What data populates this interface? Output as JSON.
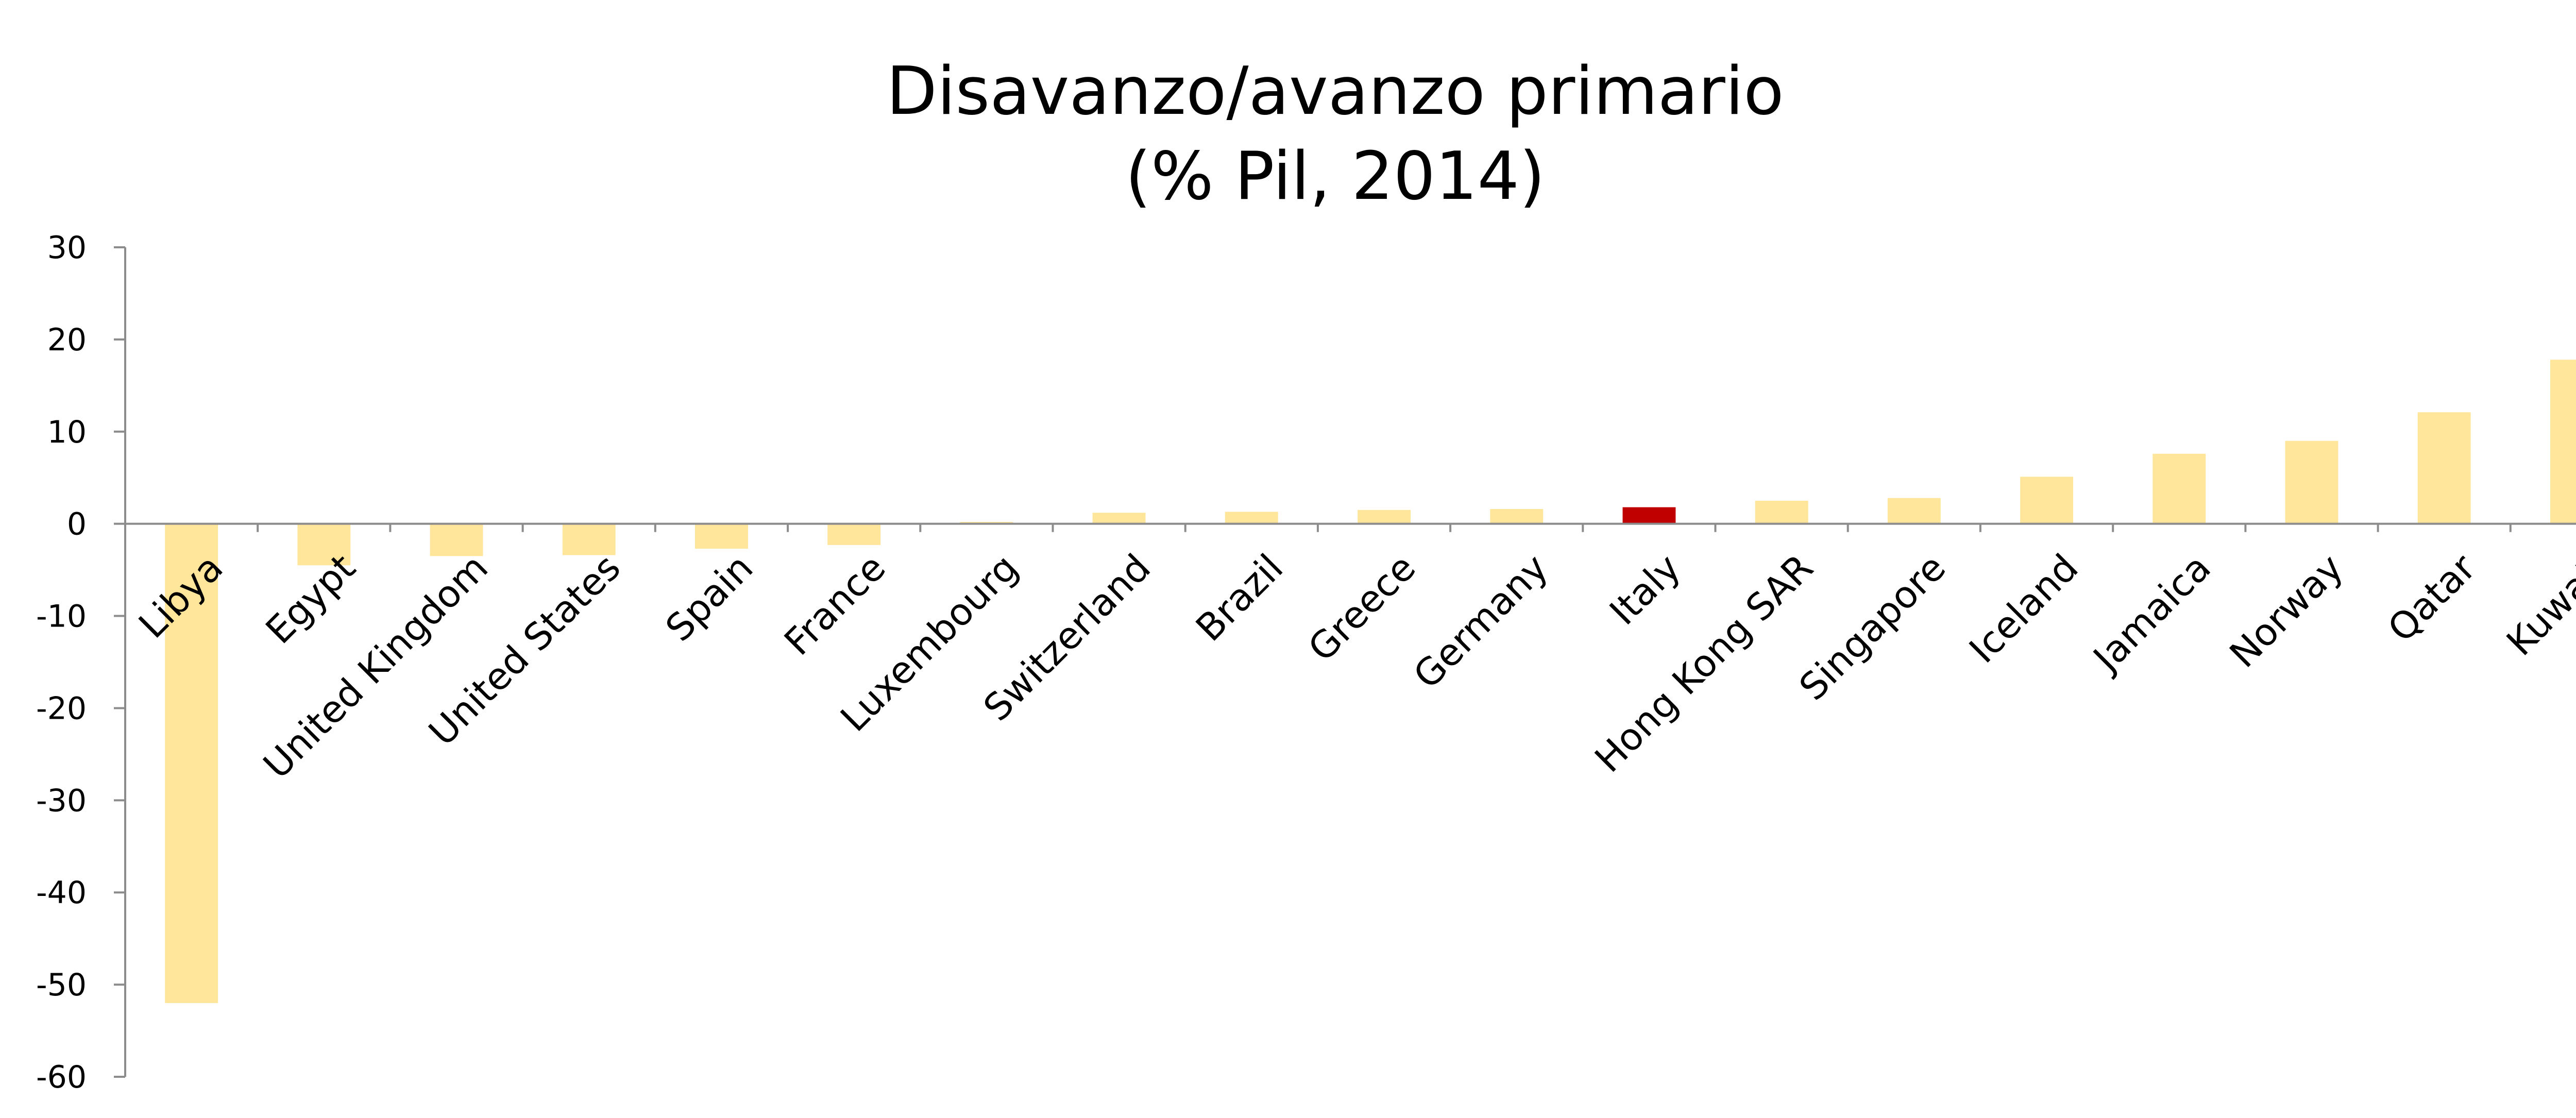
{
  "chart_data": {
    "type": "bar",
    "title": [
      "Disavanzo/avanzo primario",
      "(% Pil, 2014)"
    ],
    "xlabel": "",
    "ylabel": "",
    "categories": [
      "Libya",
      "Egypt",
      "United Kingdom",
      "United States",
      "Spain",
      "France",
      "Luxembourg",
      "Switzerland",
      "Brazil",
      "Greece",
      "Germany",
      "Italy",
      "Hong Kong SAR",
      "Singapore",
      "Iceland",
      "Jamaica",
      "Norway",
      "Qatar",
      "Kuwait"
    ],
    "values": [
      -52.0,
      -4.5,
      -3.5,
      -3.4,
      -2.7,
      -2.3,
      0.2,
      1.2,
      1.3,
      1.5,
      1.6,
      1.8,
      2.5,
      2.8,
      5.1,
      7.6,
      9.0,
      12.1,
      17.8
    ],
    "yticks": [
      30,
      20,
      10,
      0,
      -10,
      -20,
      -30,
      -40,
      -50,
      -60
    ],
    "ylim": [
      -60,
      30
    ],
    "grid": false,
    "legend": "none",
    "colors": {
      "default": "#FFE69A",
      "highlight": "#C00000",
      "axis": "#8C8C8C"
    },
    "highlight_category": "Italy"
  }
}
